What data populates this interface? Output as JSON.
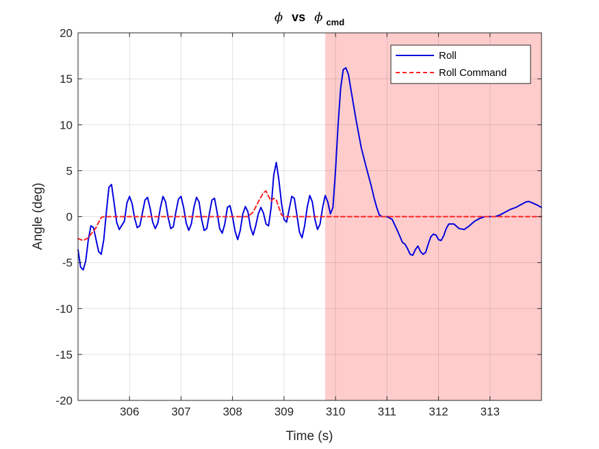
{
  "chart_data": {
    "type": "line",
    "title": {
      "phi_symbol": "ϕ",
      "vs_text": "vs",
      "cmd_subscript": "cmd"
    },
    "xlabel": "Time (s)",
    "ylabel": "Angle (deg)",
    "xlim": [
      305.0,
      314.0
    ],
    "ylim": [
      -20,
      20
    ],
    "xticks": [
      306,
      307,
      308,
      309,
      310,
      311,
      312,
      313
    ],
    "yticks": [
      -20,
      -15,
      -10,
      -5,
      0,
      5,
      10,
      15,
      20
    ],
    "grid": true,
    "legend_position": "top-right",
    "shaded_region": {
      "x_start": 309.8,
      "x_end": 314.0,
      "color": "#ffcccc"
    },
    "series": [
      {
        "name": "Roll",
        "color": "#0000dd",
        "style": "solid",
        "points": [
          [
            305.0,
            -3.6
          ],
          [
            305.05,
            -5.5
          ],
          [
            305.1,
            -5.8
          ],
          [
            305.15,
            -4.8
          ],
          [
            305.2,
            -2.5
          ],
          [
            305.25,
            -1.0
          ],
          [
            305.3,
            -1.2
          ],
          [
            305.35,
            -2.5
          ],
          [
            305.4,
            -3.8
          ],
          [
            305.45,
            -4.1
          ],
          [
            305.5,
            -2.5
          ],
          [
            305.55,
            0.5
          ],
          [
            305.6,
            3.2
          ],
          [
            305.65,
            3.5
          ],
          [
            305.7,
            1.5
          ],
          [
            305.75,
            -0.6
          ],
          [
            305.8,
            -1.4
          ],
          [
            305.9,
            -0.5
          ],
          [
            305.95,
            1.5
          ],
          [
            306.0,
            2.2
          ],
          [
            306.05,
            1.4
          ],
          [
            306.1,
            -0.2
          ],
          [
            306.15,
            -1.2
          ],
          [
            306.2,
            -1.0
          ],
          [
            306.25,
            0.4
          ],
          [
            306.3,
            1.8
          ],
          [
            306.35,
            2.1
          ],
          [
            306.4,
            0.9
          ],
          [
            306.45,
            -0.6
          ],
          [
            306.5,
            -1.3
          ],
          [
            306.55,
            -0.7
          ],
          [
            306.6,
            1.0
          ],
          [
            306.65,
            2.2
          ],
          [
            306.7,
            1.6
          ],
          [
            306.75,
            -0.1
          ],
          [
            306.8,
            -1.3
          ],
          [
            306.85,
            -1.1
          ],
          [
            306.9,
            0.5
          ],
          [
            306.95,
            1.9
          ],
          [
            307.0,
            2.2
          ],
          [
            307.05,
            1.0
          ],
          [
            307.1,
            -0.7
          ],
          [
            307.15,
            -1.5
          ],
          [
            307.2,
            -0.8
          ],
          [
            307.25,
            1.0
          ],
          [
            307.3,
            2.1
          ],
          [
            307.35,
            1.6
          ],
          [
            307.4,
            -0.3
          ],
          [
            307.45,
            -1.5
          ],
          [
            307.5,
            -1.3
          ],
          [
            307.55,
            0.3
          ],
          [
            307.6,
            1.8
          ],
          [
            307.65,
            2.0
          ],
          [
            307.7,
            0.5
          ],
          [
            307.75,
            -1.3
          ],
          [
            307.8,
            -1.8
          ],
          [
            307.85,
            -0.8
          ],
          [
            307.9,
            1.0
          ],
          [
            307.95,
            1.2
          ],
          [
            308.0,
            0.0
          ],
          [
            308.05,
            -1.6
          ],
          [
            308.1,
            -2.5
          ],
          [
            308.15,
            -1.5
          ],
          [
            308.2,
            0.3
          ],
          [
            308.25,
            1.1
          ],
          [
            308.3,
            0.5
          ],
          [
            308.35,
            -1.2
          ],
          [
            308.4,
            -2.0
          ],
          [
            308.45,
            -1.0
          ],
          [
            308.5,
            0.3
          ],
          [
            308.55,
            1.0
          ],
          [
            308.6,
            0.4
          ],
          [
            308.65,
            -0.8
          ],
          [
            308.7,
            -1.0
          ],
          [
            308.75,
            1.0
          ],
          [
            308.8,
            4.5
          ],
          [
            308.85,
            5.9
          ],
          [
            308.9,
            4.0
          ],
          [
            308.95,
            1.5
          ],
          [
            309.0,
            -0.3
          ],
          [
            309.05,
            -0.6
          ],
          [
            309.1,
            0.8
          ],
          [
            309.15,
            2.2
          ],
          [
            309.2,
            2.0
          ],
          [
            309.25,
            0.2
          ],
          [
            309.3,
            -1.7
          ],
          [
            309.35,
            -2.3
          ],
          [
            309.4,
            -1.0
          ],
          [
            309.45,
            1.0
          ],
          [
            309.5,
            2.3
          ],
          [
            309.55,
            1.6
          ],
          [
            309.6,
            -0.3
          ],
          [
            309.65,
            -1.4
          ],
          [
            309.7,
            -0.8
          ],
          [
            309.75,
            1.0
          ],
          [
            309.8,
            2.3
          ],
          [
            309.85,
            1.6
          ],
          [
            309.9,
            0.3
          ],
          [
            309.95,
            1.0
          ],
          [
            310.0,
            5.0
          ],
          [
            310.05,
            10.0
          ],
          [
            310.1,
            14.0
          ],
          [
            310.15,
            16.0
          ],
          [
            310.2,
            16.2
          ],
          [
            310.25,
            15.5
          ],
          [
            310.3,
            13.8
          ],
          [
            310.4,
            10.5
          ],
          [
            310.5,
            7.5
          ],
          [
            310.6,
            5.3
          ],
          [
            310.7,
            3.2
          ],
          [
            310.75,
            2.0
          ],
          [
            310.8,
            1.0
          ],
          [
            310.85,
            0.2
          ],
          [
            310.9,
            0.0
          ],
          [
            311.0,
            0.0
          ],
          [
            311.1,
            -0.3
          ],
          [
            311.2,
            -1.5
          ],
          [
            311.3,
            -2.8
          ],
          [
            311.35,
            -3.0
          ],
          [
            311.4,
            -3.5
          ],
          [
            311.45,
            -4.1
          ],
          [
            311.5,
            -4.2
          ],
          [
            311.55,
            -3.6
          ],
          [
            311.6,
            -3.2
          ],
          [
            311.65,
            -3.8
          ],
          [
            311.7,
            -4.1
          ],
          [
            311.75,
            -3.9
          ],
          [
            311.8,
            -3.0
          ],
          [
            311.85,
            -2.2
          ],
          [
            311.9,
            -1.9
          ],
          [
            311.95,
            -2.0
          ],
          [
            312.0,
            -2.5
          ],
          [
            312.05,
            -2.6
          ],
          [
            312.1,
            -2.1
          ],
          [
            312.15,
            -1.3
          ],
          [
            312.2,
            -0.8
          ],
          [
            312.3,
            -0.8
          ],
          [
            312.4,
            -1.3
          ],
          [
            312.5,
            -1.4
          ],
          [
            312.6,
            -1.0
          ],
          [
            312.7,
            -0.5
          ],
          [
            312.8,
            -0.2
          ],
          [
            312.9,
            0.0
          ],
          [
            313.0,
            0.0
          ],
          [
            313.1,
            0.0
          ],
          [
            313.2,
            0.2
          ],
          [
            313.3,
            0.5
          ],
          [
            313.4,
            0.8
          ],
          [
            313.5,
            1.0
          ],
          [
            313.6,
            1.3
          ],
          [
            313.7,
            1.6
          ],
          [
            313.75,
            1.65
          ],
          [
            313.8,
            1.55
          ],
          [
            313.9,
            1.3
          ],
          [
            314.0,
            1.0
          ]
        ]
      },
      {
        "name": "Roll Command",
        "color": "#ff2020",
        "style": "dashed",
        "points": [
          [
            305.0,
            -2.4
          ],
          [
            305.1,
            -2.6
          ],
          [
            305.2,
            -2.3
          ],
          [
            305.25,
            -1.9
          ],
          [
            305.3,
            -1.6
          ],
          [
            305.35,
            -1.2
          ],
          [
            305.4,
            -0.6
          ],
          [
            305.45,
            -0.1
          ],
          [
            305.5,
            0.0
          ],
          [
            308.3,
            0.0
          ],
          [
            308.4,
            0.5
          ],
          [
            308.5,
            1.6
          ],
          [
            308.6,
            2.6
          ],
          [
            308.65,
            2.8
          ],
          [
            308.7,
            2.2
          ],
          [
            308.75,
            1.7
          ],
          [
            308.8,
            2.0
          ],
          [
            308.85,
            1.8
          ],
          [
            308.9,
            1.0
          ],
          [
            308.95,
            0.2
          ],
          [
            309.0,
            0.0
          ],
          [
            314.0,
            0.0
          ]
        ]
      }
    ]
  }
}
